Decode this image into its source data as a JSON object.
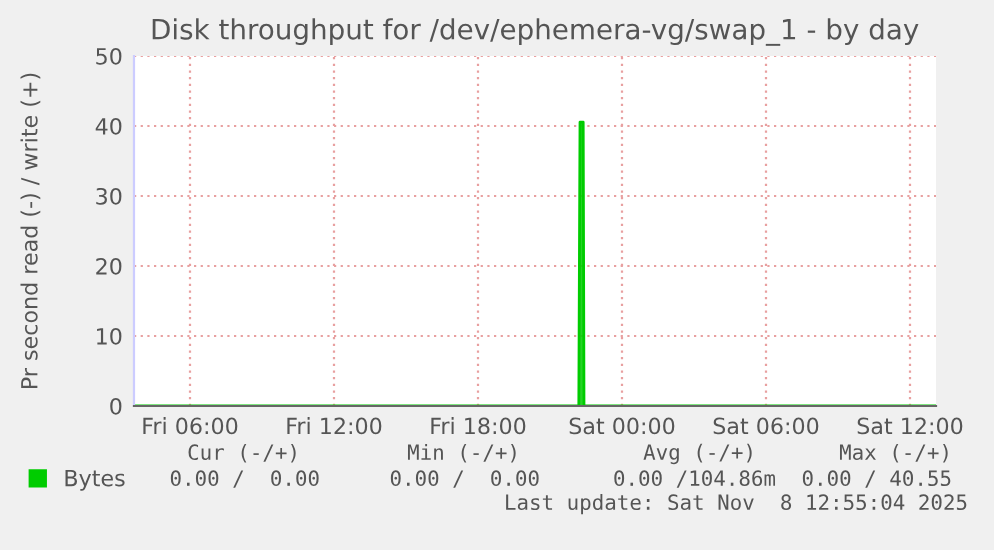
{
  "chart_data": {
    "type": "area",
    "title": "Disk throughput for /dev/ephemera-vg/swap_1 - by day",
    "ylabel": "Pr second read (-) / write (+)",
    "x": [
      "2025-11-07T03:40",
      "2025-11-07T22:12",
      "2025-11-07T22:15",
      "2025-11-07T22:23",
      "2025-11-07T22:25",
      "2025-11-08T13:05"
    ],
    "series": [
      {
        "name": "Bytes",
        "color": "#00cc00",
        "values": [
          0,
          0,
          40.55,
          40.55,
          0,
          0
        ]
      }
    ],
    "xlim": [
      "2025-11-07T03:40",
      "2025-11-08T13:05"
    ],
    "xticks": [
      {
        "value": "2025-11-07T06:00",
        "label": "Fri 06:00"
      },
      {
        "value": "2025-11-07T12:00",
        "label": "Fri 12:00"
      },
      {
        "value": "2025-11-07T18:00",
        "label": "Fri 18:00"
      },
      {
        "value": "2025-11-08T00:00",
        "label": "Sat 00:00"
      },
      {
        "value": "2025-11-08T06:00",
        "label": "Sat 06:00"
      },
      {
        "value": "2025-11-08T12:00",
        "label": "Sat 12:00"
      }
    ],
    "ylim": [
      0,
      50
    ],
    "yticks": [
      0,
      10,
      20,
      30,
      40,
      50
    ],
    "grid": true,
    "legend": "bottom left",
    "annotations": [
      "Cur (-/+)",
      "Min (-/+)",
      "Avg (-/+)",
      "Max (-/+)",
      "0.00 /  0.00",
      "0.00 /  0.00",
      "0.00 /104.86m",
      "0.00 / 40.55",
      "Last update: Sat Nov  8 12:55:04 2025"
    ]
  }
}
